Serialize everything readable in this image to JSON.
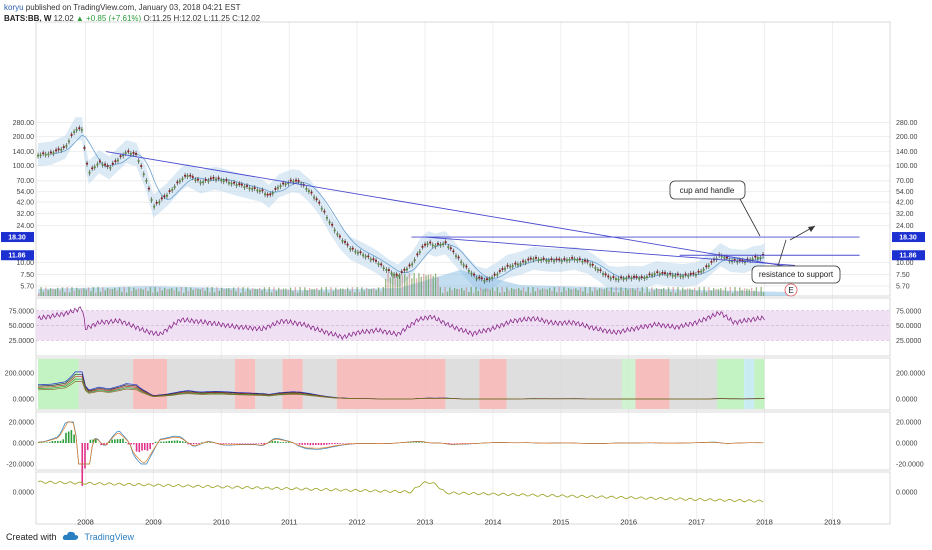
{
  "header": {
    "publisher": "koryu",
    "published_text": "published on TradingView.com, January 03, 2018 04:21 EST",
    "symbol": "BATS:BB, W",
    "last": "12.02",
    "change": "+0.85 (+7.61%)",
    "ohlc": "O:11.25 H:12.02 L:11.25 C:12.02"
  },
  "footer": {
    "created_with": "Created with",
    "brand": "TradingView"
  },
  "colors": {
    "up": "#2a9d3a",
    "candle_up": "#5a8a3a",
    "candle_down": "#8b1a1a",
    "trendline": "#4a4ad0",
    "rsi": "#8a2a8a",
    "band": "#bfd8ee",
    "marker_blue": "#1c2fd0"
  },
  "chart_data": {
    "type": "candlestick",
    "x_ticks": [
      "2008",
      "2009",
      "2010",
      "2011",
      "2012",
      "2013",
      "2014",
      "2015",
      "2016",
      "2017",
      "2018",
      "2019"
    ],
    "price_axis": {
      "scale": "log",
      "ticks": [
        "280.00",
        "200.00",
        "140.00",
        "100.00",
        "70.00",
        "54.00",
        "42.00",
        "32.00",
        "24.00",
        "18.30",
        "11.86",
        "10.00",
        "7.50",
        "5.70"
      ],
      "markers": [
        "18.30",
        "11.86"
      ]
    },
    "price_series": [
      [
        2007.3,
        130
      ],
      [
        2007.5,
        135
      ],
      [
        2007.7,
        155
      ],
      [
        2007.85,
        240
      ],
      [
        2007.95,
        240
      ],
      [
        2008.0,
        120
      ],
      [
        2008.05,
        85
      ],
      [
        2008.2,
        110
      ],
      [
        2008.35,
        95
      ],
      [
        2008.5,
        120
      ],
      [
        2008.6,
        140
      ],
      [
        2008.75,
        130
      ],
      [
        2008.9,
        70
      ],
      [
        2009.0,
        38
      ],
      [
        2009.2,
        50
      ],
      [
        2009.4,
        72
      ],
      [
        2009.5,
        80
      ],
      [
        2009.7,
        68
      ],
      [
        2009.9,
        74
      ],
      [
        2010.0,
        72
      ],
      [
        2010.2,
        65
      ],
      [
        2010.4,
        60
      ],
      [
        2010.6,
        55
      ],
      [
        2010.7,
        48
      ],
      [
        2010.85,
        62
      ],
      [
        2011.05,
        70
      ],
      [
        2011.15,
        68
      ],
      [
        2011.3,
        55
      ],
      [
        2011.45,
        40
      ],
      [
        2011.6,
        26
      ],
      [
        2011.75,
        18
      ],
      [
        2011.9,
        14
      ],
      [
        2012.1,
        12
      ],
      [
        2012.3,
        10
      ],
      [
        2012.45,
        8.3
      ],
      [
        2012.6,
        7.2
      ],
      [
        2012.8,
        9.5
      ],
      [
        2012.95,
        14
      ],
      [
        2013.05,
        16
      ],
      [
        2013.15,
        15
      ],
      [
        2013.3,
        16
      ],
      [
        2013.45,
        12
      ],
      [
        2013.6,
        9
      ],
      [
        2013.75,
        7
      ],
      [
        2013.9,
        6.5
      ],
      [
        2014.05,
        7.5
      ],
      [
        2014.2,
        9
      ],
      [
        2014.4,
        9.8
      ],
      [
        2014.6,
        11
      ],
      [
        2014.8,
        10.6
      ],
      [
        2015.0,
        10.5
      ],
      [
        2015.2,
        11
      ],
      [
        2015.4,
        10
      ],
      [
        2015.55,
        8.5
      ],
      [
        2015.7,
        7
      ],
      [
        2015.85,
        6.8
      ],
      [
        2016.0,
        7
      ],
      [
        2016.2,
        6.9
      ],
      [
        2016.4,
        7.8
      ],
      [
        2016.6,
        7.5
      ],
      [
        2016.8,
        7.3
      ],
      [
        2017.0,
        7.6
      ],
      [
        2017.15,
        9
      ],
      [
        2017.35,
        12
      ],
      [
        2017.5,
        10.5
      ],
      [
        2017.7,
        10.2
      ],
      [
        2017.85,
        11.2
      ],
      [
        2017.95,
        11.4
      ],
      [
        2018.0,
        12.02
      ]
    ],
    "rsi": {
      "ticks": [
        "75.0000",
        "50.0000",
        "25.0000"
      ],
      "values": [
        [
          2007.3,
          62
        ],
        [
          2007.7,
          70
        ],
        [
          2007.95,
          80
        ],
        [
          2008.0,
          45
        ],
        [
          2008.2,
          55
        ],
        [
          2008.5,
          58
        ],
        [
          2008.9,
          40
        ],
        [
          2009.1,
          35
        ],
        [
          2009.4,
          60
        ],
        [
          2009.8,
          55
        ],
        [
          2010.2,
          48
        ],
        [
          2010.6,
          44
        ],
        [
          2010.9,
          58
        ],
        [
          2011.2,
          52
        ],
        [
          2011.5,
          40
        ],
        [
          2011.8,
          30
        ],
        [
          2012.0,
          38
        ],
        [
          2012.3,
          42
        ],
        [
          2012.6,
          35
        ],
        [
          2012.9,
          60
        ],
        [
          2013.1,
          65
        ],
        [
          2013.4,
          48
        ],
        [
          2013.7,
          36
        ],
        [
          2014.0,
          45
        ],
        [
          2014.3,
          58
        ],
        [
          2014.6,
          62
        ],
        [
          2014.9,
          54
        ],
        [
          2015.2,
          55
        ],
        [
          2015.5,
          45
        ],
        [
          2015.8,
          38
        ],
        [
          2016.1,
          45
        ],
        [
          2016.4,
          52
        ],
        [
          2016.7,
          47
        ],
        [
          2017.0,
          55
        ],
        [
          2017.35,
          72
        ],
        [
          2017.55,
          55
        ],
        [
          2017.8,
          60
        ],
        [
          2018.0,
          63
        ]
      ]
    },
    "panel3": {
      "ticks": [
        "200.0000",
        "0.0000"
      ]
    },
    "panel4": {
      "ticks": [
        "20.0000",
        "0.0000",
        "-20.0000"
      ]
    },
    "panel5": {
      "ticks": [
        "0.0000"
      ]
    },
    "annotations": [
      "cup and handle",
      "resistance to support",
      "E"
    ]
  }
}
